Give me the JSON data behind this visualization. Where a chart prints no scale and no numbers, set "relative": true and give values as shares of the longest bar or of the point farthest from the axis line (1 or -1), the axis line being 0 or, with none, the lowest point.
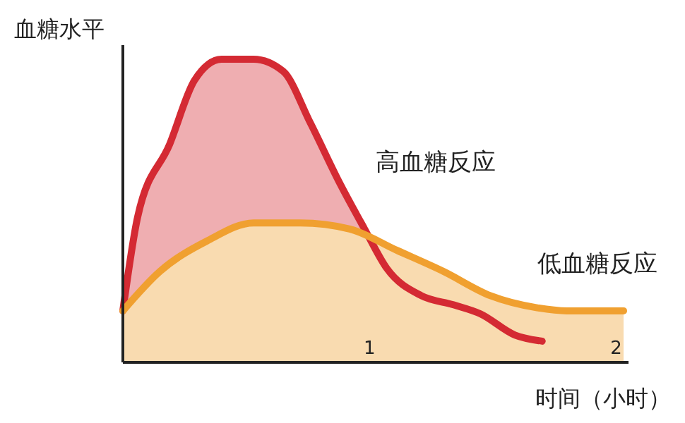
{
  "chart_data": {
    "type": "area",
    "relative": true,
    "ylabel": "血糖水平",
    "xlabel": "时间（小时）",
    "xlim": [
      0,
      2.05
    ],
    "xticks": [
      1,
      2
    ],
    "tick_labels": "x",
    "grid": false,
    "series": [
      {
        "name": "高血糖反应",
        "color": "#d42a33",
        "x": [
          0,
          0.06,
          0.19,
          0.29,
          0.4,
          0.53,
          0.65,
          0.76,
          0.88,
          0.98,
          1.07,
          1.21,
          1.34,
          1.45,
          1.59,
          1.7
        ],
        "values": [
          0.17,
          0.48,
          0.72,
          0.93,
          1.0,
          1.0,
          0.96,
          0.79,
          0.59,
          0.44,
          0.31,
          0.22,
          0.19,
          0.16,
          0.09,
          0.07
        ]
      },
      {
        "name": "低血糖反应",
        "color": "#f0a030",
        "x": [
          0,
          0.15,
          0.34,
          0.53,
          0.72,
          0.92,
          1.11,
          1.3,
          1.49,
          1.68,
          1.8,
          2.03
        ],
        "values": [
          0.17,
          0.3,
          0.4,
          0.46,
          0.46,
          0.44,
          0.37,
          0.3,
          0.22,
          0.18,
          0.17,
          0.17
        ]
      }
    ]
  }
}
